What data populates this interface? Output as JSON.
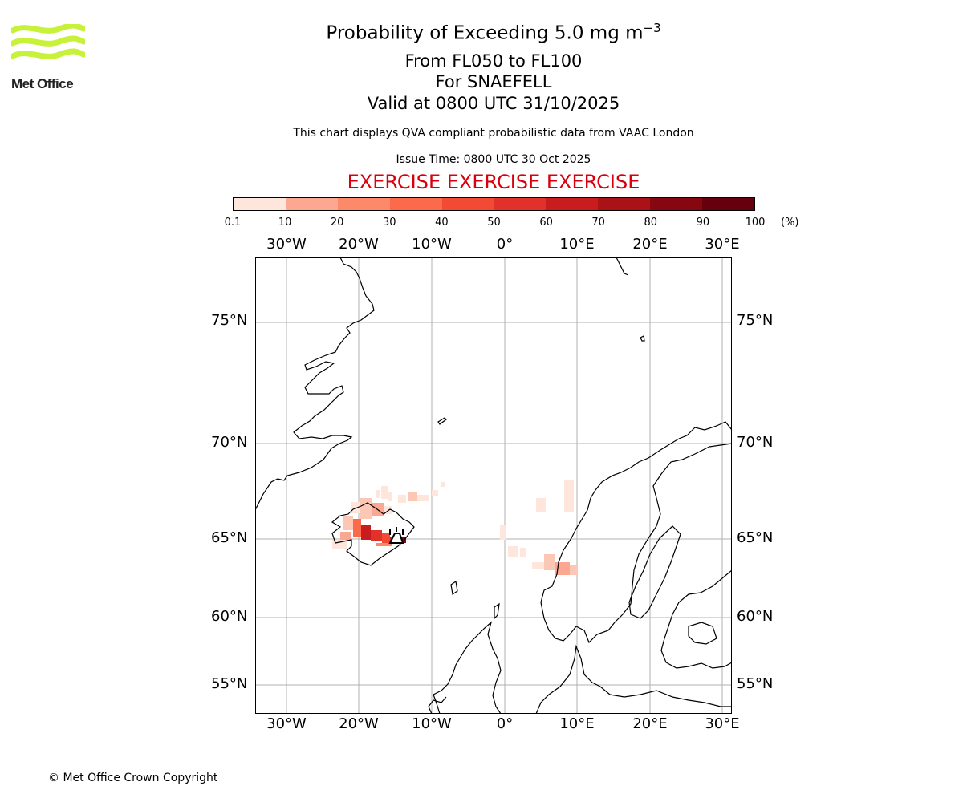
{
  "header": {
    "logo_text": "Met Office",
    "title_main": "Probability of Exceeding 5.0 mg m",
    "title_sup": "−3",
    "line_levels": "From FL050 to FL100",
    "line_volcano": "For SNAEFELL",
    "line_valid": "Valid at 0800 UTC 31/10/2025",
    "note": "This chart displays QVA compliant probabilistic data from VAAC London",
    "issue_time": "Issue Time: 0800 UTC 30 Oct 2025",
    "exercise": "EXERCISE EXERCISE EXERCISE"
  },
  "colors": {
    "brand_green": "#c8f23a",
    "exercise_red": "#d8000c",
    "colorbar": [
      "#fee6dc",
      "#fcc8b5",
      "#fca791",
      "#fc8a6a",
      "#fb6a4a",
      "#f34a36",
      "#e2302a",
      "#c91c1e",
      "#ab1218",
      "#86070f",
      "#67000d"
    ]
  },
  "colorbar": {
    "ticks": [
      "0.1",
      "10",
      "20",
      "30",
      "40",
      "50",
      "60",
      "70",
      "80",
      "90",
      "100"
    ],
    "unit": "(%)"
  },
  "map": {
    "lon_labels": [
      "30°W",
      "20°W",
      "10°W",
      "0°",
      "10°E",
      "20°E",
      "30°E"
    ],
    "lat_labels": [
      "75°N",
      "70°N",
      "65°N",
      "60°N",
      "55°N"
    ],
    "volcano": "Snaefell"
  },
  "footer": {
    "copyright": "© Met Office Crown Copyright"
  }
}
